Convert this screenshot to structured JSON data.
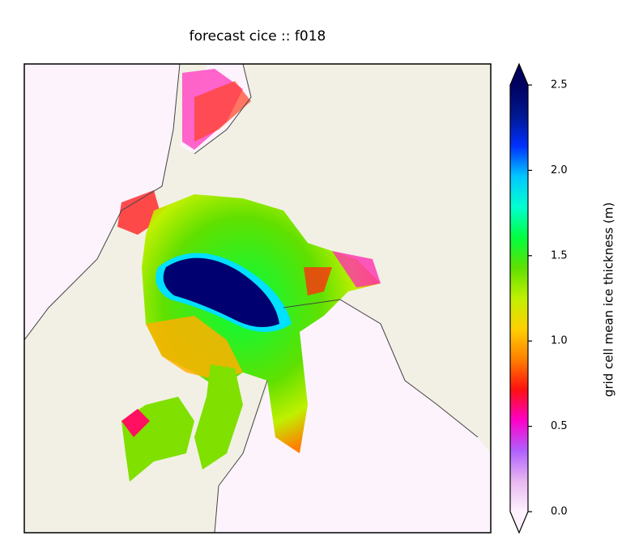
{
  "title": "forecast cice :: f018",
  "colorbar": {
    "label": "grid cell mean ice thickness (m)",
    "range": [
      0,
      2.5
    ],
    "ticks": [
      {
        "value": 0,
        "label": "0.0"
      },
      0.5,
      {
        "value": 1,
        "label": "1.0"
      },
      1.5,
      {
        "value": 2,
        "label": "2.0"
      },
      2.5
    ],
    "colors": [
      "#fff2ff",
      "#e8b8f0",
      "#b060ff",
      "#ff00c8",
      "#ff1010",
      "#ff8000",
      "#ffd000",
      "#c0f000",
      "#60e000",
      "#00ff40",
      "#00ffd0",
      "#00c8ff",
      "#0030ff",
      "#001890",
      "#000060"
    ],
    "extend": "both"
  }
}
